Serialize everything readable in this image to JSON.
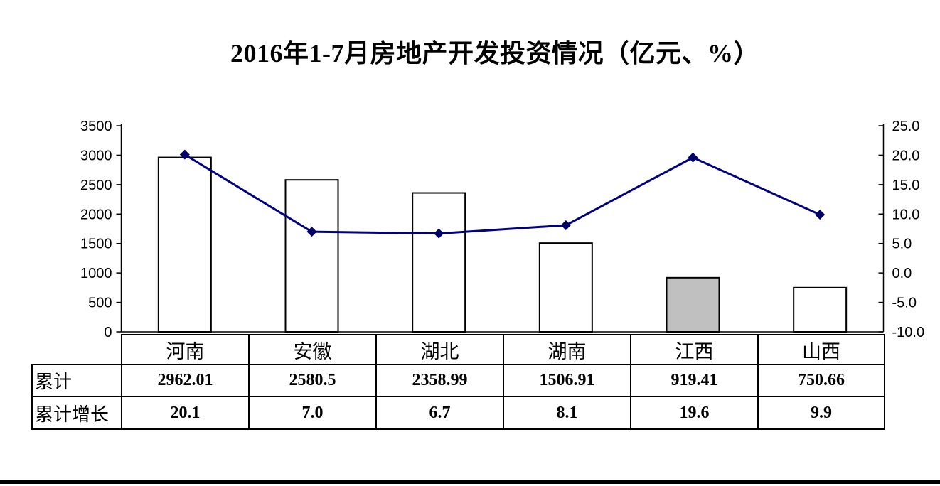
{
  "title": "2016年1-7月房地产开发投资情况（亿元、%）",
  "chart_data": {
    "type": "bar+line combo",
    "title": "2016年1-7月房地产开发投资情况（亿元、%）",
    "categories": [
      "河南",
      "安徽",
      "湖北",
      "湖南",
      "江西",
      "山西"
    ],
    "series": [
      {
        "name": "累计",
        "type": "bar",
        "axis": "left",
        "unit": "亿元",
        "values": [
          2962.01,
          2580.5,
          2358.99,
          1506.91,
          919.41,
          750.66
        ],
        "point_fills": [
          "#ffffff",
          "#ffffff",
          "#ffffff",
          "#ffffff",
          "#c0c0c0",
          "#ffffff"
        ]
      },
      {
        "name": "累计增长",
        "type": "line",
        "axis": "right",
        "unit": "%",
        "values": [
          20.1,
          7.0,
          6.7,
          8.1,
          19.6,
          9.9
        ]
      }
    ],
    "left_axis": {
      "min": 0,
      "max": 3500,
      "step": 500,
      "tick_labels": [
        "3500",
        "3000",
        "2500",
        "2000",
        "1500",
        "1000",
        "500",
        "0"
      ]
    },
    "right_axis": {
      "min": -10,
      "max": 25,
      "step": 5,
      "tick_labels": [
        "25.0",
        "20.0",
        "15.0",
        "10.0",
        "5.0",
        "0.0",
        "-5.0",
        "-10.0"
      ]
    },
    "grid": false,
    "legend": "none"
  },
  "table": {
    "header_categories": [
      "河南",
      "安徽",
      "湖北",
      "湖南",
      "江西",
      "山西"
    ],
    "rows": [
      {
        "label": "累计",
        "values": [
          "2962.01",
          "2580.5",
          "2358.99",
          "1506.91",
          "919.41",
          "750.66"
        ]
      },
      {
        "label": "累计增长",
        "values": [
          "20.1",
          "7.0",
          "6.7",
          "8.1",
          "19.6",
          "9.9"
        ]
      }
    ]
  },
  "colors": {
    "line": "#000080",
    "marker": "#000066",
    "bar_default_fill": "#ffffff",
    "bar_highlight_fill": "#c0c0c0",
    "stroke": "#000000",
    "background": "#ffffff"
  }
}
